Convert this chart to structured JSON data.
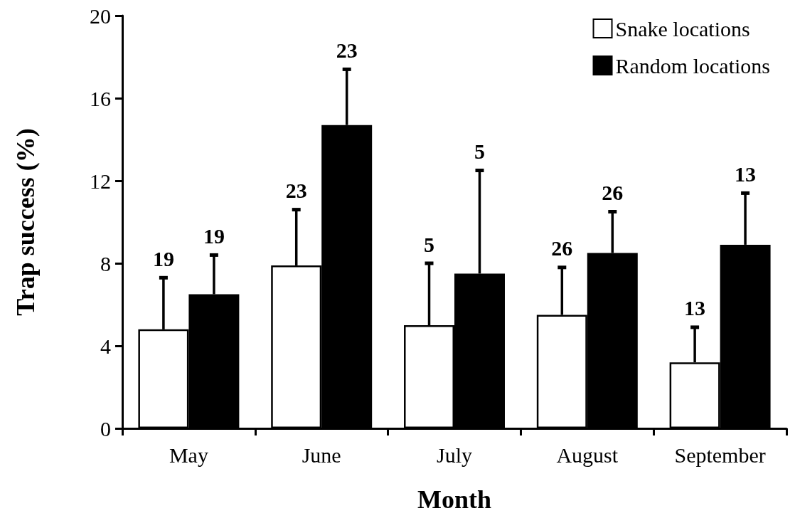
{
  "chart_data": {
    "type": "bar",
    "xlabel": "Month",
    "ylabel": "Trap success (%)",
    "categories": [
      "May",
      "June",
      "July",
      "August",
      "September"
    ],
    "series": [
      {
        "name": "Snake locations",
        "color": "#ffffff",
        "values": [
          4.8,
          7.9,
          5.0,
          5.5,
          3.2
        ],
        "errors": [
          [
            4.8,
            7.3
          ],
          [
            7.9,
            10.6
          ],
          [
            5.0,
            8.0
          ],
          [
            5.5,
            7.8
          ],
          [
            3.2,
            4.9
          ]
        ]
      },
      {
        "name": "Random locations",
        "color": "#000000",
        "values": [
          6.5,
          14.7,
          7.5,
          8.5,
          8.9
        ],
        "errors": [
          [
            6.5,
            8.4
          ],
          [
            14.7,
            17.4
          ],
          [
            7.5,
            12.5
          ],
          [
            8.5,
            10.5
          ],
          [
            8.9,
            11.4
          ]
        ]
      }
    ],
    "annotations": [
      "19",
      "19",
      "23",
      "23",
      "5",
      "5",
      "26",
      "26",
      "13",
      "13"
    ],
    "ylim": [
      0,
      20
    ],
    "yticks": [
      0,
      4,
      8,
      12,
      16,
      20
    ],
    "grid": false,
    "legend": "top right"
  }
}
